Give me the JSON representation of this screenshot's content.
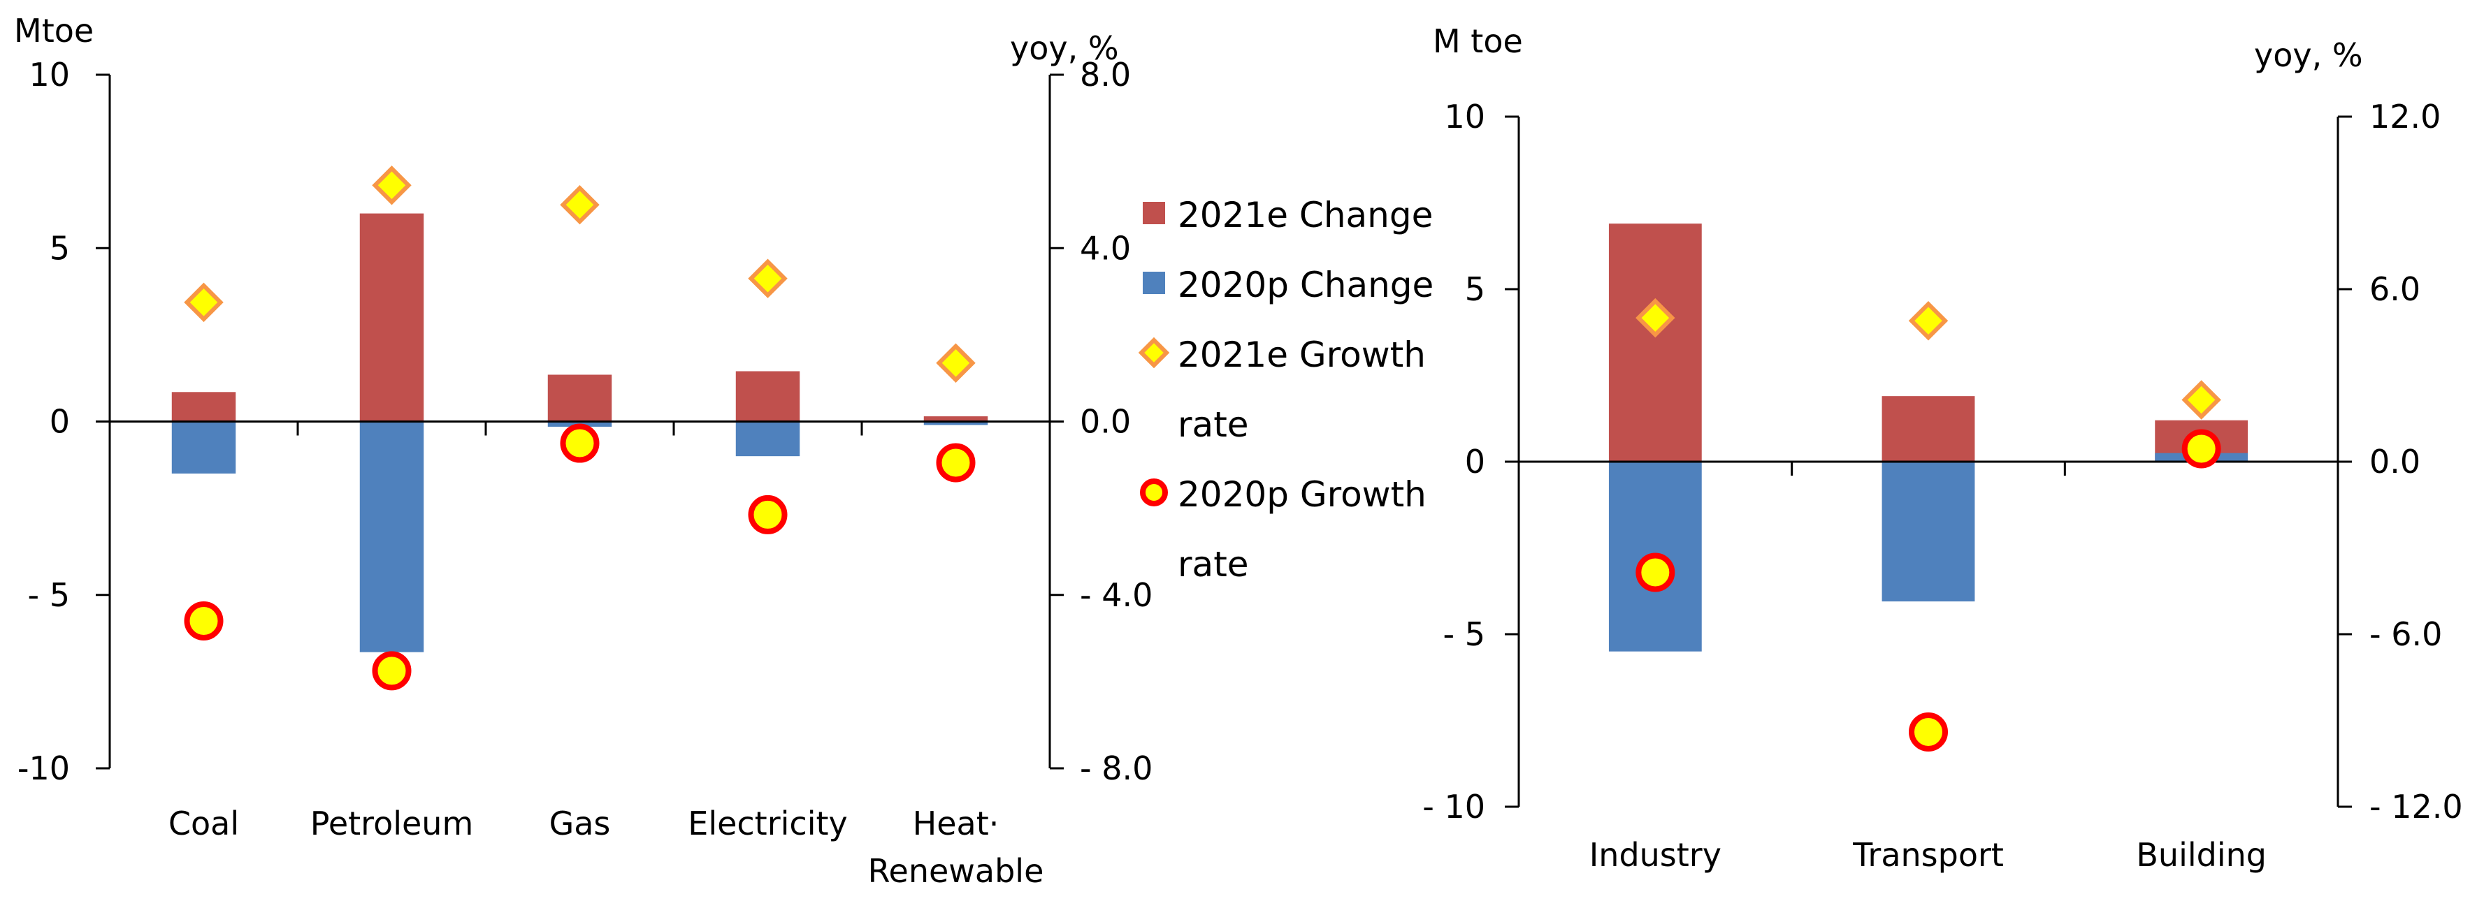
{
  "colors": {
    "change_2021e": "#c0504d",
    "change_2020p": "#4f81bd",
    "marker_fill": "#ffff00",
    "diamond_stroke": "#f79646",
    "circle_stroke": "#ff0000",
    "axis": "#000000"
  },
  "legend": {
    "items": [
      {
        "text": "2021e Change",
        "marker": "bar-red-icon"
      },
      {
        "text": "2020p Change",
        "marker": "bar-blue-icon"
      },
      {
        "text": "2021e Growth",
        "marker": "diamond-icon"
      },
      {
        "text": "rate",
        "marker": ""
      },
      {
        "text": "2020p Growth",
        "marker": "circle-icon"
      },
      {
        "text": "rate",
        "marker": ""
      }
    ]
  },
  "chart_data": [
    {
      "type": "bar",
      "left_unit": "Mtoe",
      "right_unit": "yoy, %",
      "categories": [
        "Coal",
        "Petroleum",
        "Gas",
        "Electricity",
        [
          "Heat·",
          "Renewable"
        ]
      ],
      "left_ticks": [
        "10",
        "5",
        "0",
        "- 5",
        "-10"
      ],
      "right_ticks": [
        "8.0",
        "4.0",
        "0.0",
        "- 4.0",
        "- 8.0"
      ],
      "ylim_left": [
        -10,
        10
      ],
      "ylim_right": [
        -8,
        8
      ],
      "series": [
        {
          "name": "2021e Change",
          "kind": "bar",
          "axis": "left",
          "values": [
            0.85,
            6.0,
            1.35,
            1.45,
            0.15
          ]
        },
        {
          "name": "2020p Change",
          "kind": "bar",
          "axis": "left",
          "values": [
            -1.5,
            -6.65,
            -0.15,
            -1.0,
            -0.1
          ]
        },
        {
          "name": "2021e Growth rate",
          "kind": "diamond",
          "axis": "right",
          "values": [
            2.75,
            5.45,
            5.0,
            3.3,
            1.35
          ]
        },
        {
          "name": "2020p Growth rate",
          "kind": "circle",
          "axis": "right",
          "values": [
            -4.6,
            -5.75,
            -0.5,
            -2.15,
            -0.95
          ]
        }
      ]
    },
    {
      "type": "bar",
      "left_unit": "M toe",
      "right_unit": "yoy, %",
      "categories": [
        "Industry",
        "Transport",
        "Building"
      ],
      "left_ticks": [
        "10",
        "5",
        "0",
        "- 5",
        "- 10"
      ],
      "right_ticks": [
        "12.0",
        "6.0",
        "0.0",
        "- 6.0",
        "- 12.0"
      ],
      "ylim_left": [
        -10,
        10
      ],
      "ylim_right": [
        -12,
        12
      ],
      "series": [
        {
          "name": "2021e Change",
          "kind": "bar",
          "axis": "left",
          "values": [
            6.9,
            1.9,
            1.2
          ]
        },
        {
          "name": "2020p Change",
          "kind": "bar",
          "axis": "left",
          "values": [
            -5.5,
            -4.05,
            0.25
          ]
        },
        {
          "name": "2021e Growth rate",
          "kind": "diamond",
          "axis": "right",
          "values": [
            5.0,
            4.9,
            2.15
          ]
        },
        {
          "name": "2020p Growth rate",
          "kind": "circle",
          "axis": "right",
          "values": [
            -3.85,
            -9.4,
            0.45
          ]
        }
      ]
    }
  ]
}
